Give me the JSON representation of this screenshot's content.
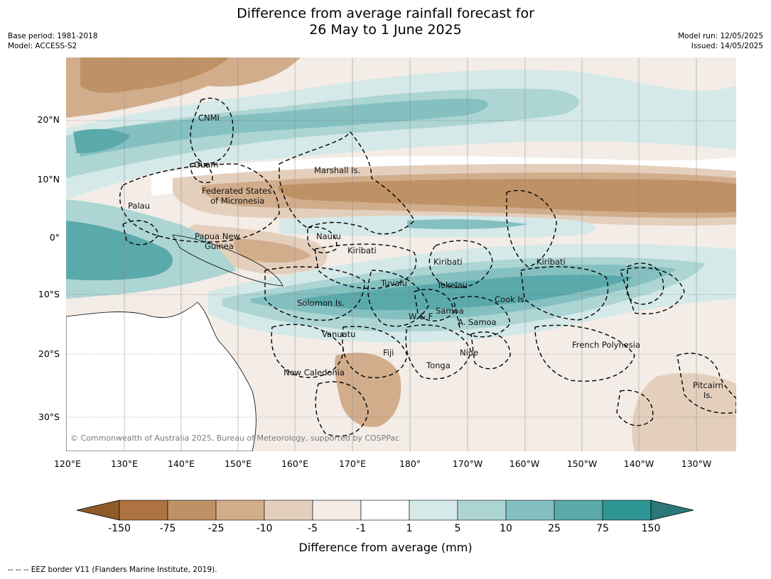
{
  "title": {
    "line1": "Difference from average rainfall forecast for",
    "line2": "26 May to 1 June 2025"
  },
  "meta": {
    "base_period": "Base period: 1981-2018",
    "model": "Model: ACCESS-S2",
    "model_run": "Model run: 12/05/2025",
    "issued": "Issued: 14/05/2025"
  },
  "map": {
    "lat_labels": [
      "20°N",
      "10°N",
      "0°",
      "10°S",
      "20°S",
      "30°S"
    ],
    "lon_labels": [
      "120°E",
      "130°E",
      "140°E",
      "150°E",
      "160°E",
      "170°E",
      "180°",
      "170°W",
      "160°W",
      "150°W",
      "140°W",
      "130°W"
    ],
    "places": [
      {
        "name": "CNMI"
      },
      {
        "name": "Guam"
      },
      {
        "name": "Marshall Is."
      },
      {
        "name": "Federated States"
      },
      {
        "name": "of Micronesia"
      },
      {
        "name": "Palau"
      },
      {
        "name": "Papua New"
      },
      {
        "name": "Guinea"
      },
      {
        "name": "Nauru"
      },
      {
        "name": "Kiribati"
      },
      {
        "name": "Kiribati"
      },
      {
        "name": "Kiribati"
      },
      {
        "name": "Tuvalu"
      },
      {
        "name": "Tokelau"
      },
      {
        "name": "Solomon Is."
      },
      {
        "name": "Cook Is."
      },
      {
        "name": "W & F"
      },
      {
        "name": "Samoa"
      },
      {
        "name": "A. Samoa"
      },
      {
        "name": "Vanuatu"
      },
      {
        "name": "Fiji"
      },
      {
        "name": "Niue"
      },
      {
        "name": "French Polynesia"
      },
      {
        "name": "Tonga"
      },
      {
        "name": "New Caledonia"
      },
      {
        "name": "Pitcairn"
      },
      {
        "name": "Is."
      }
    ],
    "copyright": "© Commonwealth of Australia 2025, Bureau of Meteorology, supported by COSPPac"
  },
  "colorbar": {
    "title": "Difference from average (mm)",
    "ticks": [
      "-150",
      "-75",
      "-25",
      "-10",
      "-5",
      "-1",
      "1",
      "5",
      "10",
      "25",
      "75",
      "150"
    ],
    "colors": {
      "under": "#8f5a2a",
      "bins": [
        "#ad7442",
        "#bf9266",
        "#d2ad8c",
        "#e4cfbd",
        "#f4ece6",
        "#ffffff",
        "#d5e9e8",
        "#acd5d4",
        "#85c0c1",
        "#5aa9ab",
        "#2e9595"
      ],
      "over": "#2a7878"
    }
  },
  "footer": "--  --  -- EEZ border V11 (Flanders Marine Institute, 2019)."
}
